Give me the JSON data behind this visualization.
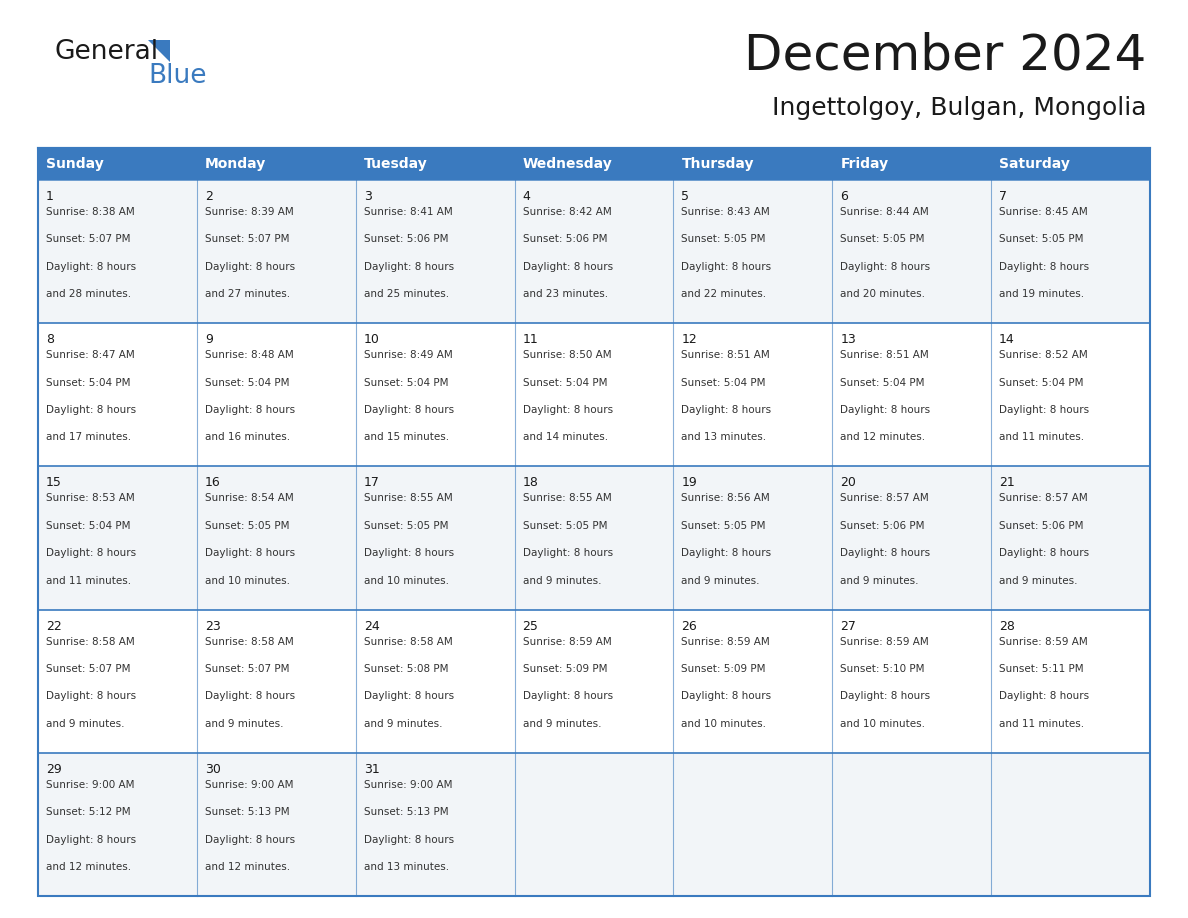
{
  "title": "December 2024",
  "subtitle": "Ingettolgoy, Bulgan, Mongolia",
  "header_color": "#3a7abf",
  "header_text_color": "#ffffff",
  "cell_bg_light": "#f2f5f8",
  "cell_bg_white": "#ffffff",
  "border_color": "#3a7abf",
  "text_color": "#333333",
  "days_of_week": [
    "Sunday",
    "Monday",
    "Tuesday",
    "Wednesday",
    "Thursday",
    "Friday",
    "Saturday"
  ],
  "calendar_data": [
    [
      {
        "day": 1,
        "sunrise": "8:38 AM",
        "sunset": "5:07 PM",
        "daylight": "8 hours and 28 minutes"
      },
      {
        "day": 2,
        "sunrise": "8:39 AM",
        "sunset": "5:07 PM",
        "daylight": "8 hours and 27 minutes"
      },
      {
        "day": 3,
        "sunrise": "8:41 AM",
        "sunset": "5:06 PM",
        "daylight": "8 hours and 25 minutes"
      },
      {
        "day": 4,
        "sunrise": "8:42 AM",
        "sunset": "5:06 PM",
        "daylight": "8 hours and 23 minutes"
      },
      {
        "day": 5,
        "sunrise": "8:43 AM",
        "sunset": "5:05 PM",
        "daylight": "8 hours and 22 minutes"
      },
      {
        "day": 6,
        "sunrise": "8:44 AM",
        "sunset": "5:05 PM",
        "daylight": "8 hours and 20 minutes"
      },
      {
        "day": 7,
        "sunrise": "8:45 AM",
        "sunset": "5:05 PM",
        "daylight": "8 hours and 19 minutes"
      }
    ],
    [
      {
        "day": 8,
        "sunrise": "8:47 AM",
        "sunset": "5:04 PM",
        "daylight": "8 hours and 17 minutes"
      },
      {
        "day": 9,
        "sunrise": "8:48 AM",
        "sunset": "5:04 PM",
        "daylight": "8 hours and 16 minutes"
      },
      {
        "day": 10,
        "sunrise": "8:49 AM",
        "sunset": "5:04 PM",
        "daylight": "8 hours and 15 minutes"
      },
      {
        "day": 11,
        "sunrise": "8:50 AM",
        "sunset": "5:04 PM",
        "daylight": "8 hours and 14 minutes"
      },
      {
        "day": 12,
        "sunrise": "8:51 AM",
        "sunset": "5:04 PM",
        "daylight": "8 hours and 13 minutes"
      },
      {
        "day": 13,
        "sunrise": "8:51 AM",
        "sunset": "5:04 PM",
        "daylight": "8 hours and 12 minutes"
      },
      {
        "day": 14,
        "sunrise": "8:52 AM",
        "sunset": "5:04 PM",
        "daylight": "8 hours and 11 minutes"
      }
    ],
    [
      {
        "day": 15,
        "sunrise": "8:53 AM",
        "sunset": "5:04 PM",
        "daylight": "8 hours and 11 minutes"
      },
      {
        "day": 16,
        "sunrise": "8:54 AM",
        "sunset": "5:05 PM",
        "daylight": "8 hours and 10 minutes"
      },
      {
        "day": 17,
        "sunrise": "8:55 AM",
        "sunset": "5:05 PM",
        "daylight": "8 hours and 10 minutes"
      },
      {
        "day": 18,
        "sunrise": "8:55 AM",
        "sunset": "5:05 PM",
        "daylight": "8 hours and 9 minutes"
      },
      {
        "day": 19,
        "sunrise": "8:56 AM",
        "sunset": "5:05 PM",
        "daylight": "8 hours and 9 minutes"
      },
      {
        "day": 20,
        "sunrise": "8:57 AM",
        "sunset": "5:06 PM",
        "daylight": "8 hours and 9 minutes"
      },
      {
        "day": 21,
        "sunrise": "8:57 AM",
        "sunset": "5:06 PM",
        "daylight": "8 hours and 9 minutes"
      }
    ],
    [
      {
        "day": 22,
        "sunrise": "8:58 AM",
        "sunset": "5:07 PM",
        "daylight": "8 hours and 9 minutes"
      },
      {
        "day": 23,
        "sunrise": "8:58 AM",
        "sunset": "5:07 PM",
        "daylight": "8 hours and 9 minutes"
      },
      {
        "day": 24,
        "sunrise": "8:58 AM",
        "sunset": "5:08 PM",
        "daylight": "8 hours and 9 minutes"
      },
      {
        "day": 25,
        "sunrise": "8:59 AM",
        "sunset": "5:09 PM",
        "daylight": "8 hours and 9 minutes"
      },
      {
        "day": 26,
        "sunrise": "8:59 AM",
        "sunset": "5:09 PM",
        "daylight": "8 hours and 10 minutes"
      },
      {
        "day": 27,
        "sunrise": "8:59 AM",
        "sunset": "5:10 PM",
        "daylight": "8 hours and 10 minutes"
      },
      {
        "day": 28,
        "sunrise": "8:59 AM",
        "sunset": "5:11 PM",
        "daylight": "8 hours and 11 minutes"
      }
    ],
    [
      {
        "day": 29,
        "sunrise": "9:00 AM",
        "sunset": "5:12 PM",
        "daylight": "8 hours and 12 minutes"
      },
      {
        "day": 30,
        "sunrise": "9:00 AM",
        "sunset": "5:13 PM",
        "daylight": "8 hours and 12 minutes"
      },
      {
        "day": 31,
        "sunrise": "9:00 AM",
        "sunset": "5:13 PM",
        "daylight": "8 hours and 13 minutes"
      },
      null,
      null,
      null,
      null
    ]
  ],
  "logo_text_general": "General",
  "logo_text_blue": "Blue",
  "title_fontsize": 36,
  "subtitle_fontsize": 18,
  "header_fontsize": 10,
  "day_number_fontsize": 9,
  "cell_text_fontsize": 7.5
}
